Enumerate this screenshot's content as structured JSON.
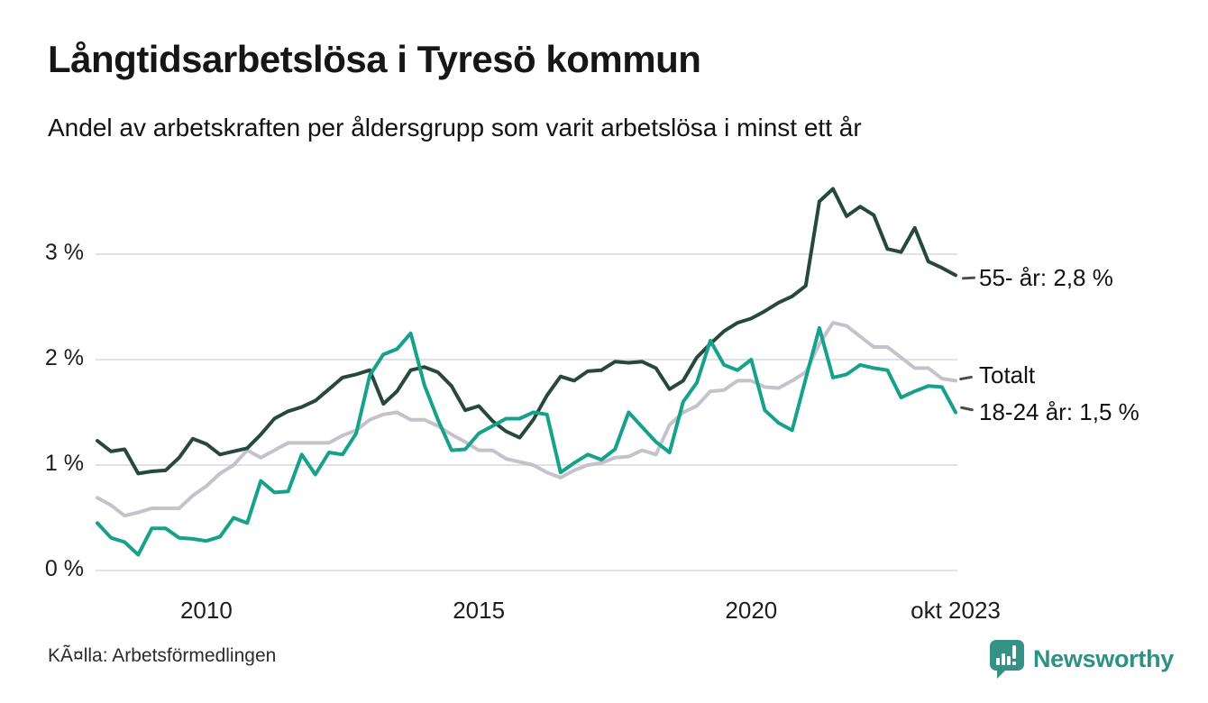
{
  "title": "Långtidsarbetslösa i Tyresö kommun",
  "subtitle": "Andel av arbetskraften per åldersgrupp som varit arbetslösa i minst ett år",
  "source": "KÃ¤lla: Arbetsförmedlingen",
  "branding": {
    "name": "Newsworthy",
    "color": "#2d9285",
    "icon": "bar-chart-speech-bubble-icon",
    "icon_color": "#349184"
  },
  "chart_data": {
    "type": "line",
    "title": "Långtidsarbetslösa i Tyresö kommun",
    "xlabel": "",
    "ylabel": "",
    "grid": true,
    "legend_position": "right-end-labels",
    "x_unit": "decimal_year_quarterly",
    "x_axis": {
      "domain": [
        2008.0,
        2023.75
      ],
      "ticks": [
        {
          "label": "2010",
          "value": 2010.0
        },
        {
          "label": "2015",
          "value": 2015.0
        },
        {
          "label": "2020",
          "value": 2020.0
        },
        {
          "label": "okt 2023",
          "value": 2023.75
        }
      ]
    },
    "y_axis": {
      "unit": "%",
      "ylim": [
        0,
        3.8
      ],
      "tick_values": [
        0,
        1,
        2,
        3
      ],
      "tick_labels": [
        "0 %",
        "1 %",
        "2 %",
        "3 %"
      ],
      "gridline_color": "#e2e2e6"
    },
    "x": [
      2008.0,
      2008.25,
      2008.5,
      2008.75,
      2009.0,
      2009.25,
      2009.5,
      2009.75,
      2010.0,
      2010.25,
      2010.5,
      2010.75,
      2011.0,
      2011.25,
      2011.5,
      2011.75,
      2012.0,
      2012.25,
      2012.5,
      2012.75,
      2013.0,
      2013.25,
      2013.5,
      2013.75,
      2014.0,
      2014.25,
      2014.5,
      2014.75,
      2015.0,
      2015.25,
      2015.5,
      2015.75,
      2016.0,
      2016.25,
      2016.5,
      2016.75,
      2017.0,
      2017.25,
      2017.5,
      2017.75,
      2018.0,
      2018.25,
      2018.5,
      2018.75,
      2019.0,
      2019.25,
      2019.5,
      2019.75,
      2020.0,
      2020.25,
      2020.5,
      2020.75,
      2021.0,
      2021.25,
      2021.5,
      2021.75,
      2022.0,
      2022.25,
      2022.5,
      2022.75,
      2023.0,
      2023.25,
      2023.5,
      2023.75
    ],
    "series": [
      {
        "name": "55- år",
        "end_label": "55- år: 2,8 %",
        "end_value": "2,8 %",
        "color": "#27483d",
        "values": [
          1.23,
          1.13,
          1.15,
          0.92,
          0.94,
          0.95,
          1.07,
          1.25,
          1.2,
          1.1,
          1.13,
          1.16,
          1.29,
          1.44,
          1.51,
          1.55,
          1.61,
          1.72,
          1.83,
          1.86,
          1.9,
          1.58,
          1.7,
          1.9,
          1.93,
          1.88,
          1.75,
          1.52,
          1.56,
          1.42,
          1.32,
          1.26,
          1.43,
          1.66,
          1.84,
          1.8,
          1.89,
          1.9,
          1.98,
          1.97,
          1.98,
          1.92,
          1.72,
          1.8,
          2.02,
          2.15,
          2.27,
          2.35,
          2.39,
          2.46,
          2.54,
          2.6,
          2.7,
          3.5,
          3.62,
          3.36,
          3.45,
          3.37,
          3.05,
          3.02,
          3.25,
          2.93,
          2.87,
          2.8
        ]
      },
      {
        "name": "Totalt",
        "end_label": "Totalt",
        "end_value": "1,8 %",
        "color": "#c4c3cd",
        "values": [
          0.69,
          0.62,
          0.52,
          0.55,
          0.59,
          0.59,
          0.59,
          0.71,
          0.8,
          0.92,
          1.0,
          1.14,
          1.07,
          1.14,
          1.21,
          1.21,
          1.21,
          1.21,
          1.28,
          1.33,
          1.43,
          1.48,
          1.5,
          1.43,
          1.43,
          1.37,
          1.29,
          1.22,
          1.14,
          1.14,
          1.06,
          1.03,
          1.0,
          0.93,
          0.88,
          0.95,
          1.0,
          1.02,
          1.07,
          1.08,
          1.14,
          1.1,
          1.38,
          1.5,
          1.56,
          1.7,
          1.71,
          1.8,
          1.8,
          1.74,
          1.73,
          1.8,
          1.88,
          2.15,
          2.35,
          2.32,
          2.22,
          2.12,
          2.12,
          2.02,
          1.92,
          1.92,
          1.82,
          1.8
        ]
      },
      {
        "name": "18-24 år",
        "end_label": "18-24 år: 1,5 %",
        "end_value": "1,5 %",
        "color": "#16a18b",
        "values": [
          0.45,
          0.31,
          0.27,
          0.15,
          0.4,
          0.4,
          0.31,
          0.3,
          0.28,
          0.32,
          0.5,
          0.45,
          0.85,
          0.74,
          0.75,
          1.1,
          0.91,
          1.12,
          1.1,
          1.3,
          1.85,
          2.05,
          2.1,
          2.25,
          1.76,
          1.43,
          1.14,
          1.15,
          1.3,
          1.37,
          1.44,
          1.44,
          1.5,
          1.48,
          0.93,
          1.02,
          1.1,
          1.05,
          1.15,
          1.5,
          1.36,
          1.22,
          1.12,
          1.6,
          1.78,
          2.18,
          1.95,
          1.9,
          2.0,
          1.52,
          1.4,
          1.33,
          1.82,
          2.3,
          1.83,
          1.86,
          1.95,
          1.92,
          1.9,
          1.64,
          1.7,
          1.75,
          1.74,
          1.5
        ]
      }
    ]
  }
}
